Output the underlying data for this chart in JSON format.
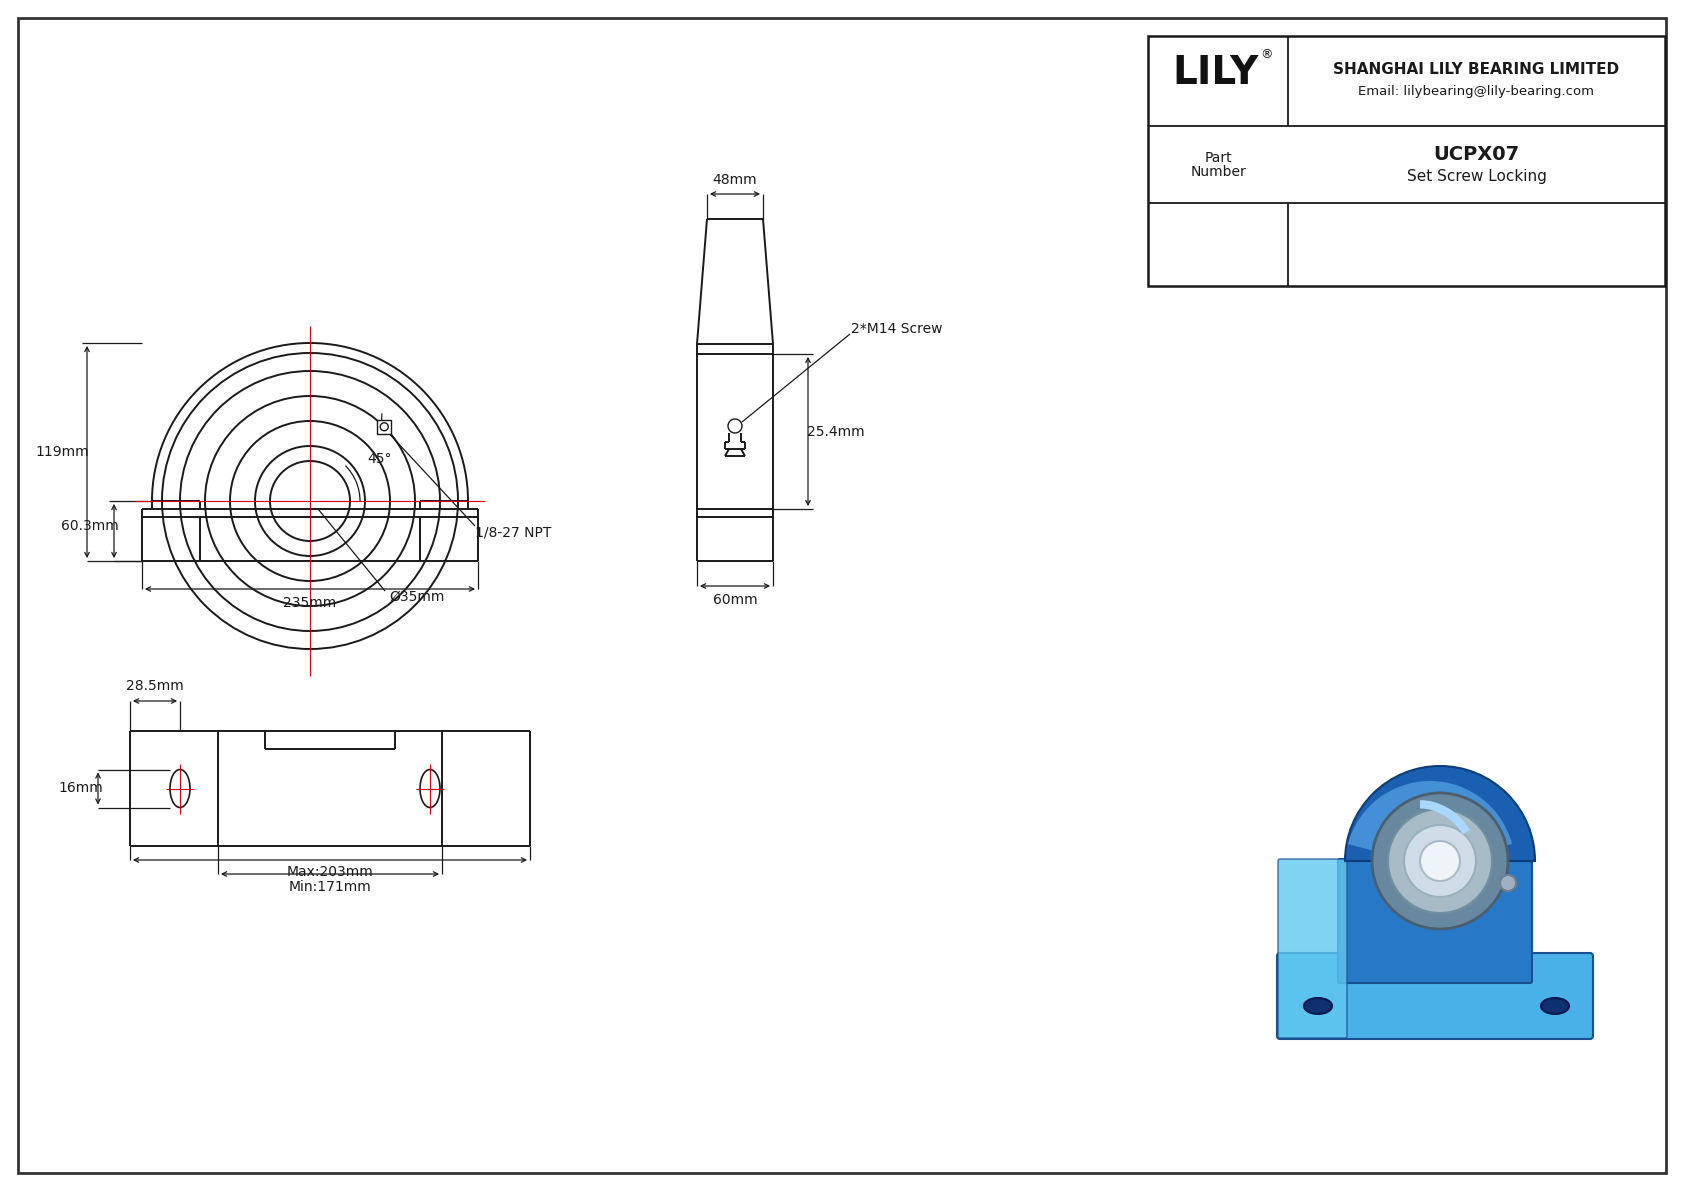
{
  "bg_color": "#ffffff",
  "line_color": "#1a1a1a",
  "red_color": "#dd0000",
  "company": "SHANGHAI LILY BEARING LIMITED",
  "email": "Email: lilybearing@lily-bearing.com",
  "part_number": "UCPX07",
  "locking_type": "Set Screw Locking",
  "part_label_line1": "Part",
  "part_label_line2": "Number",
  "logo_text": "LILY",
  "logo_reg": "®",
  "dim_235": "235mm",
  "dim_119": "119mm",
  "dim_60_3": "60.3mm",
  "dim_bore": "Ø35mm",
  "dim_angle": "45°",
  "dim_npt": "1/8-27 NPT",
  "dim_screw": "2*M14 Screw",
  "dim_48": "48mm",
  "dim_25_4": "25.4mm",
  "dim_60": "60mm",
  "dim_171": "Min:171mm",
  "dim_203": "Max:203mm",
  "dim_16": "16mm",
  "dim_28_5": "28.5mm"
}
